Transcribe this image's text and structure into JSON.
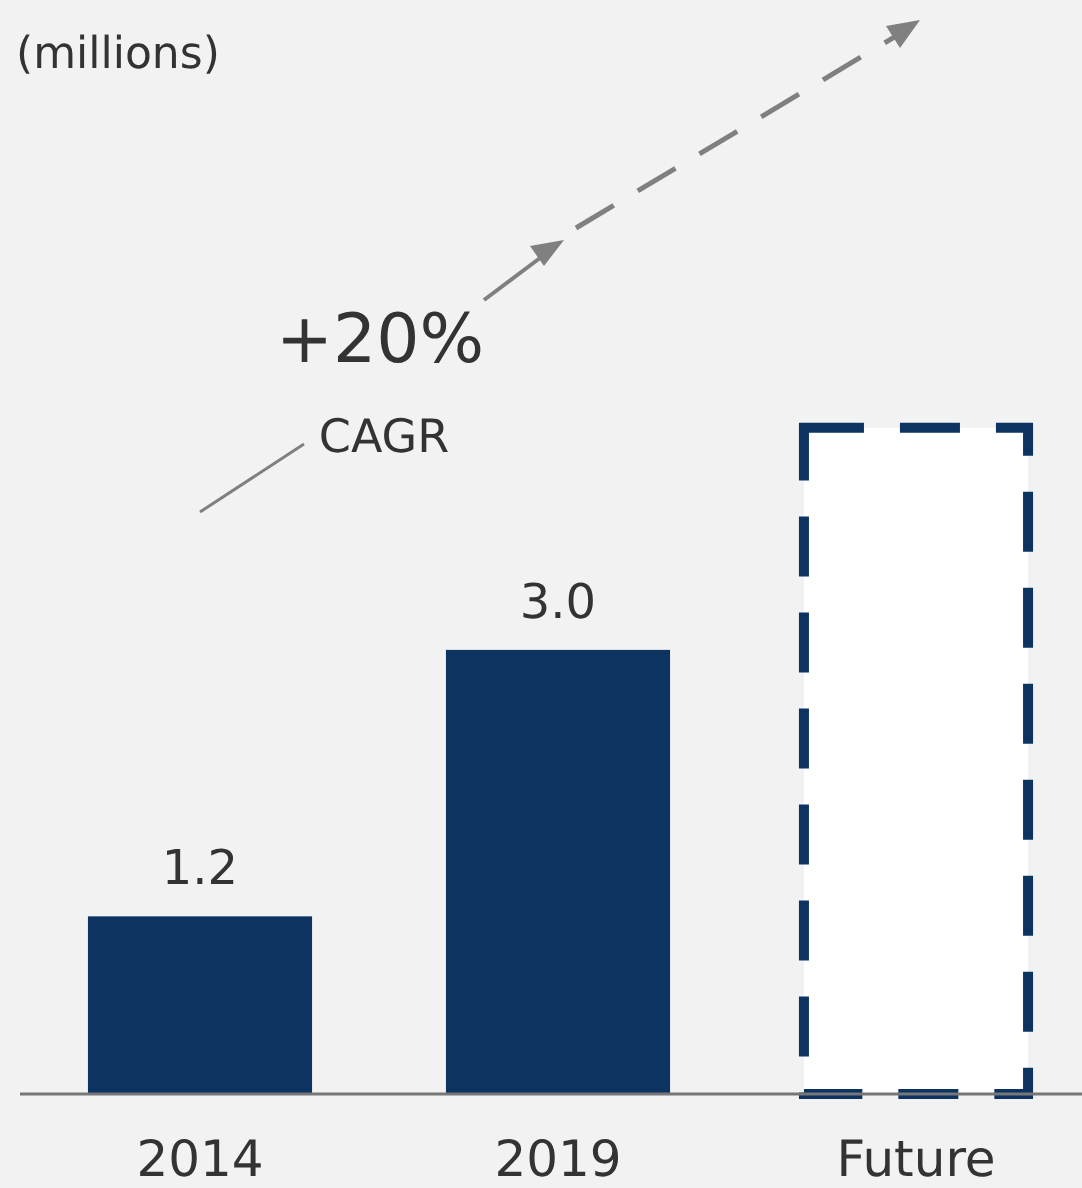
{
  "chart_data": {
    "type": "bar",
    "subtitle": "(millions)",
    "categories": [
      "2014",
      "2019",
      "Future"
    ],
    "series": [
      {
        "color": "#0d3360",
        "values": [
          1.2,
          3.0,
          null
        ],
        "value_labels": [
          "1.2",
          "3.0",
          null
        ]
      },
      {
        "color": "#0d3360",
        "values": [
          null,
          null,
          4.5
        ],
        "line_style": "dashed"
      }
    ],
    "annotations": [
      "+20%",
      "CAGR"
    ]
  }
}
